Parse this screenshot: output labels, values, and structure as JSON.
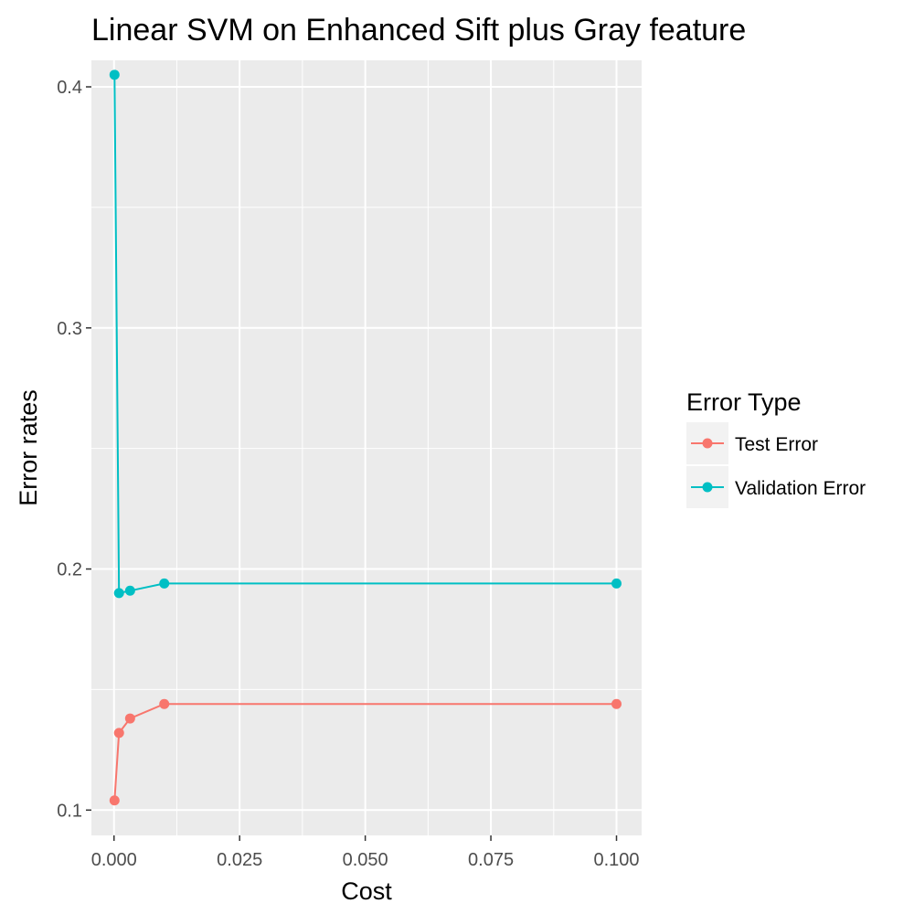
{
  "chart_data": {
    "type": "line",
    "title": "Linear SVM on Enhanced Sift plus Gray feature",
    "xlabel": "Cost",
    "ylabel": "Error rates",
    "xlim": [
      -0.0045,
      0.105
    ],
    "ylim": [
      0.0895,
      0.411
    ],
    "x_ticks": [
      0.0,
      0.025,
      0.05,
      0.075,
      0.1
    ],
    "x_tick_labels": [
      "0.000",
      "0.025",
      "0.050",
      "0.075",
      "0.100"
    ],
    "y_ticks": [
      0.1,
      0.2,
      0.3,
      0.4
    ],
    "y_tick_labels": [
      "0.1",
      "0.2",
      "0.3",
      "0.4"
    ],
    "grid": true,
    "legend": {
      "title": "Error Type",
      "position": "right"
    },
    "series": [
      {
        "name": "Test Error",
        "color": "#f8766d",
        "x": [
          0.0001,
          0.001,
          0.0032,
          0.01,
          0.1
        ],
        "y": [
          0.104,
          0.132,
          0.138,
          0.144,
          0.144
        ]
      },
      {
        "name": "Validation Error",
        "color": "#00bfc4",
        "x": [
          0.0001,
          0.001,
          0.0032,
          0.01,
          0.1
        ],
        "y": [
          0.405,
          0.19,
          0.191,
          0.194,
          0.194
        ]
      }
    ]
  }
}
